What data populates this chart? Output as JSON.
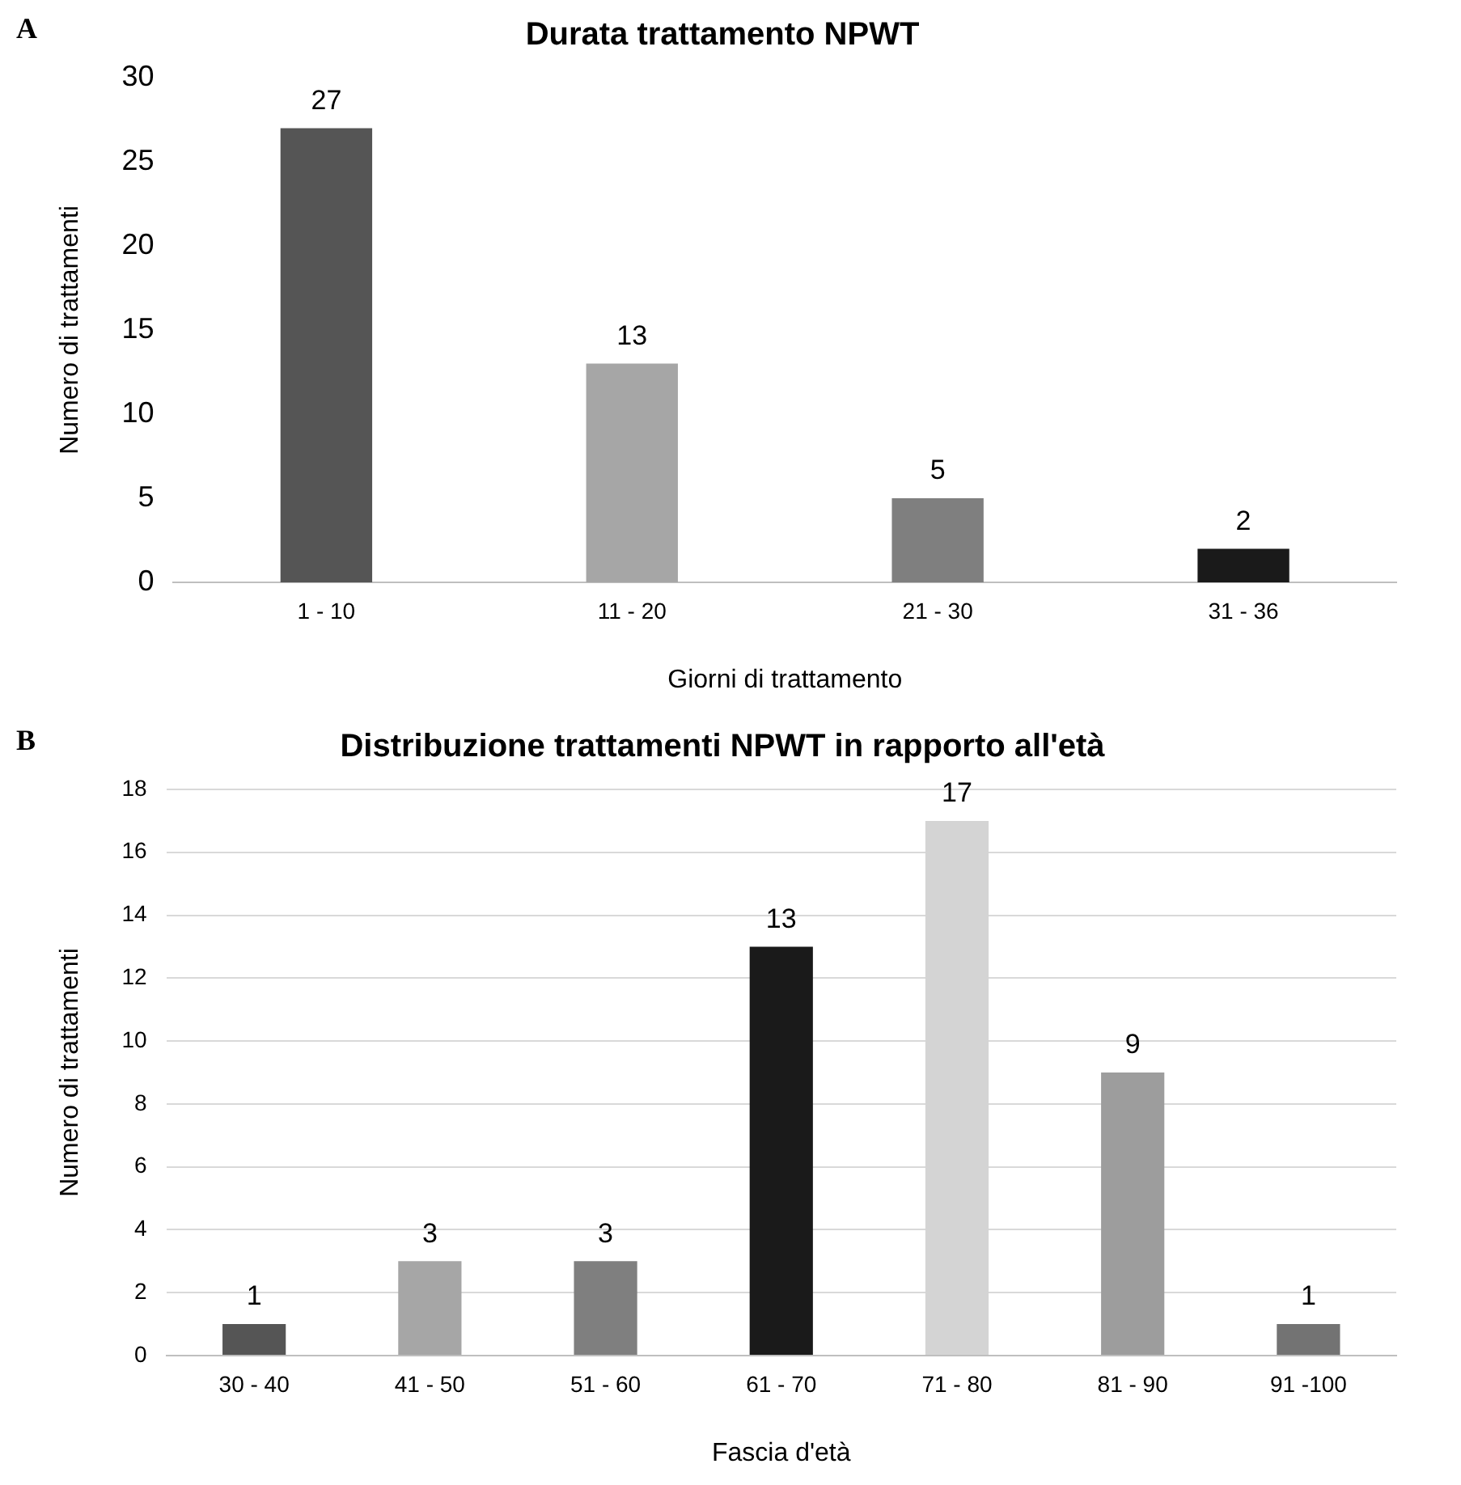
{
  "chart_data": [
    {
      "type": "bar",
      "title": "Durata trattamento NPWT",
      "xlabel": "Giorni di trattamento",
      "ylabel": "Numero di trattamenti",
      "annotations": [
        "A"
      ],
      "categories": [
        "1 - 10",
        "11 - 20",
        "21 - 30",
        "31 - 36"
      ],
      "values": [
        27,
        13,
        5,
        2
      ],
      "colors": [
        "#555555",
        "#a6a6a6",
        "#7f7f7f",
        "#1a1a1a"
      ],
      "ylim": [
        0,
        30
      ],
      "yticks": [
        0,
        5,
        10,
        15,
        20,
        25,
        30
      ],
      "grid": false,
      "data_labels": true
    },
    {
      "type": "bar",
      "title": "Distribuzione trattamenti NPWT in rapporto all'età",
      "xlabel": "Fascia d'età",
      "ylabel": "Numero di trattamenti",
      "annotations": [
        "B"
      ],
      "categories": [
        "30 - 40",
        "41 - 50",
        "51 - 60",
        "61 - 70",
        "71 - 80",
        "81 - 90",
        "91 -100"
      ],
      "values": [
        1,
        3,
        3,
        13,
        17,
        9,
        1
      ],
      "colors": [
        "#555555",
        "#a6a6a6",
        "#7f7f7f",
        "#1a1a1a",
        "#d4d4d4",
        "#9d9d9d",
        "#737373"
      ],
      "ylim": [
        0,
        18
      ],
      "yticks": [
        0,
        2,
        4,
        6,
        8,
        10,
        12,
        14,
        16,
        18
      ],
      "grid": "y",
      "data_labels": true
    }
  ]
}
